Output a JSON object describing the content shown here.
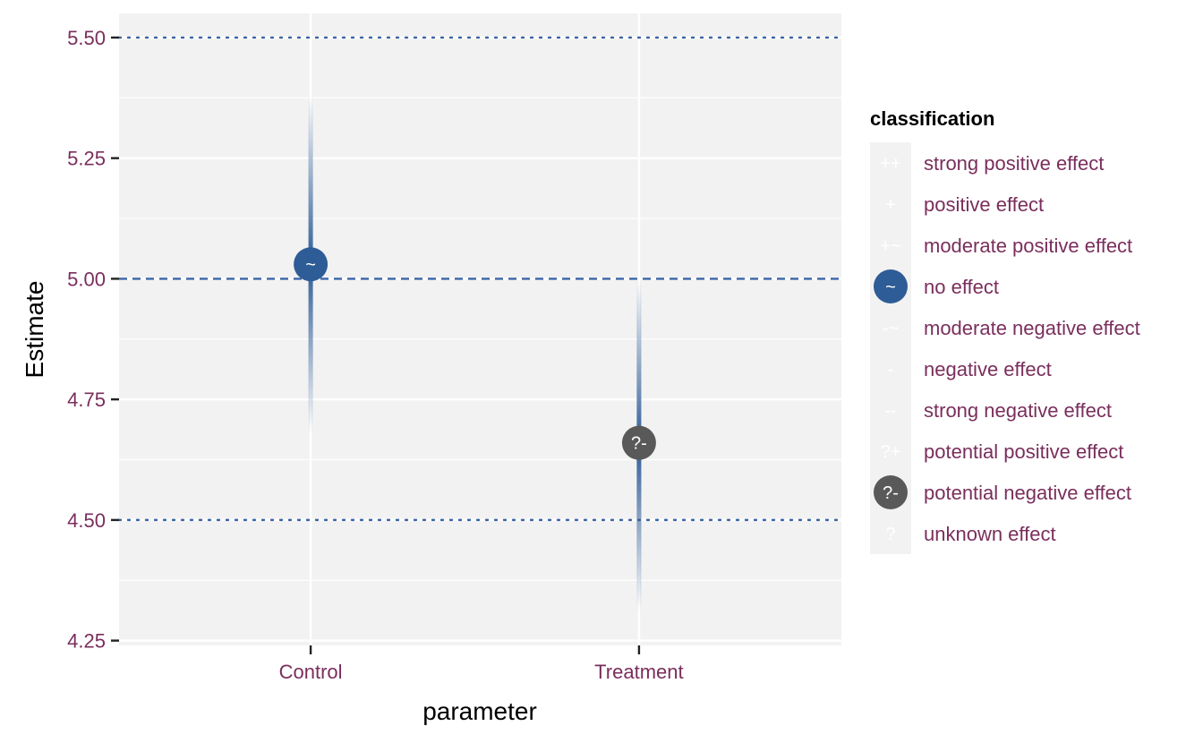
{
  "chart_data": {
    "type": "interval",
    "xlabel": "parameter",
    "ylabel": "Estimate",
    "categories": [
      "Control",
      "Treatment"
    ],
    "ylim": [
      4.24,
      5.55
    ],
    "yticks": [
      4.25,
      4.5,
      4.75,
      5.0,
      5.25,
      5.5
    ],
    "ytick_labels": [
      "4.25",
      "4.50",
      "4.75",
      "5.00",
      "5.25",
      "5.50"
    ],
    "reference_lines": [
      {
        "value": 5.0,
        "style": "dashed"
      },
      {
        "value": 4.5,
        "style": "dotted"
      },
      {
        "value": 5.5,
        "style": "dotted"
      }
    ],
    "points": [
      {
        "category": "Control",
        "estimate": 5.03,
        "lower": 4.68,
        "upper": 5.38,
        "symbol": "~",
        "classification": "no effect"
      },
      {
        "category": "Treatment",
        "estimate": 4.66,
        "lower": 4.31,
        "upper": 5.0,
        "symbol": "?-",
        "classification": "potential negative effect"
      }
    ],
    "grid": true,
    "legend_position": "right",
    "legend": {
      "title": "classification",
      "items": [
        {
          "symbol": "++",
          "label": "strong positive effect",
          "shown": false
        },
        {
          "symbol": "+",
          "label": "positive effect",
          "shown": false
        },
        {
          "symbol": "+~",
          "label": "moderate positive effect",
          "shown": false
        },
        {
          "symbol": "~",
          "label": "no effect",
          "shown": true,
          "color": "#2e5c96"
        },
        {
          "symbol": "-~",
          "label": "moderate negative effect",
          "shown": false
        },
        {
          "symbol": "-",
          "label": "negative effect",
          "shown": false
        },
        {
          "symbol": "--",
          "label": "strong negative effect",
          "shown": false
        },
        {
          "symbol": "?+",
          "label": "potential positive effect",
          "shown": false
        },
        {
          "symbol": "?-",
          "label": "potential negative effect",
          "shown": true,
          "color": "#595959"
        },
        {
          "symbol": "?",
          "label": "unknown effect",
          "shown": false
        }
      ]
    }
  },
  "colors": {
    "panel": "#f2f2f2",
    "grid": "#ffffff",
    "reference": "#3a64a8",
    "tick_text": "#7a2e5c",
    "interval": "#2e5c96"
  }
}
